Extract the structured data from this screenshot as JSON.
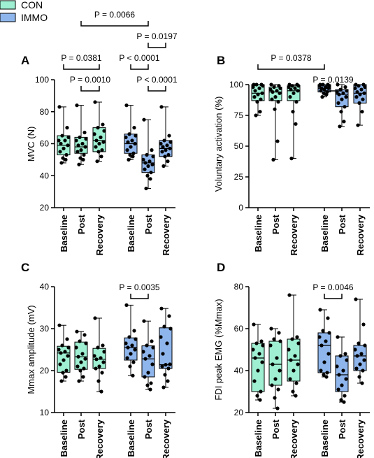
{
  "legend": [
    {
      "label": "CON",
      "color": "#9ff0d2"
    },
    {
      "label": "IMMO",
      "color": "#8fb6ec"
    }
  ],
  "chart_data": [
    {
      "type": "box",
      "panel": "A",
      "ylabel": "MVC (N)",
      "ylim": [
        20,
        100
      ],
      "yticks": [
        20,
        40,
        60,
        80,
        100
      ],
      "categories": [
        "Baseline",
        "Post",
        "Recovery",
        "Baseline",
        "Post",
        "Recovery"
      ],
      "groups": [
        "CON",
        "CON",
        "CON",
        "IMMO",
        "IMMO",
        "IMMO"
      ],
      "boxes": [
        {
          "min": 48,
          "q1": 53,
          "median": 59,
          "q3": 65,
          "max": 83,
          "points": [
            83,
            70,
            65,
            64,
            62,
            62,
            60,
            59,
            57,
            55,
            53,
            51,
            50,
            48
          ]
        },
        {
          "min": 47,
          "q1": 54,
          "median": 58,
          "q3": 64,
          "max": 84,
          "points": [
            84,
            67,
            64,
            63,
            62,
            60,
            59,
            58,
            56,
            55,
            53,
            51,
            50,
            47
          ]
        },
        {
          "min": 49,
          "q1": 55,
          "median": 62,
          "q3": 70,
          "max": 86,
          "points": [
            86,
            72,
            70,
            68,
            66,
            64,
            62,
            61,
            60,
            58,
            56,
            55,
            52,
            49
          ]
        },
        {
          "min": 50,
          "q1": 54,
          "median": 60,
          "q3": 66,
          "max": 84,
          "points": [
            84,
            70,
            66,
            65,
            64,
            62,
            61,
            60,
            58,
            56,
            54,
            53,
            52,
            50
          ]
        },
        {
          "min": 32,
          "q1": 42,
          "median": 48,
          "q3": 53,
          "max": 75,
          "points": [
            75,
            56,
            53,
            52,
            50,
            49,
            48,
            47,
            46,
            44,
            42,
            40,
            38,
            32
          ]
        },
        {
          "min": 46,
          "q1": 52,
          "median": 57,
          "q3": 62,
          "max": 83,
          "points": [
            83,
            65,
            62,
            61,
            60,
            59,
            58,
            57,
            56,
            55,
            53,
            52,
            49,
            46
          ]
        }
      ],
      "comparisons": [
        {
          "from": 0,
          "to": 2,
          "label": "P = 0.0381",
          "level": 1
        },
        {
          "from": 1,
          "to": 2,
          "label": "P = 0.0010",
          "level": 0
        },
        {
          "from": 3,
          "to": 4,
          "label": "P < 0.0001",
          "level": 1
        },
        {
          "from": 4,
          "to": 5,
          "label": "P < 0.0001",
          "level": 0
        },
        {
          "from": 4,
          "to": 5,
          "label": "P = 0.0197",
          "level": 2
        },
        {
          "from": 1,
          "to": 4,
          "label": "P = 0.0066",
          "level": 3
        }
      ]
    },
    {
      "type": "box",
      "panel": "B",
      "ylabel": "Voluntary activation (%)",
      "ylim": [
        0,
        100
      ],
      "yticks": [
        0,
        25,
        50,
        75,
        100
      ],
      "categories": [
        "Baseline",
        "Post",
        "Recovery",
        "Baseline",
        "Post",
        "Recovery"
      ],
      "groups": [
        "CON",
        "CON",
        "CON",
        "IMMO",
        "IMMO",
        "IMMO"
      ],
      "boxes": [
        {
          "min": 75,
          "q1": 87,
          "median": 93,
          "q3": 100,
          "max": 100,
          "points": [
            100,
            100,
            100,
            99,
            98,
            97,
            95,
            93,
            92,
            90,
            88,
            86,
            78,
            75
          ]
        },
        {
          "min": 39,
          "q1": 87,
          "median": 94,
          "q3": 98,
          "max": 100,
          "points": [
            100,
            99,
            98,
            97,
            96,
            95,
            94,
            93,
            90,
            88,
            86,
            80,
            54,
            39
          ]
        },
        {
          "min": 40,
          "q1": 87,
          "median": 95,
          "q3": 99,
          "max": 100,
          "points": [
            100,
            100,
            99,
            99,
            98,
            97,
            96,
            95,
            93,
            90,
            86,
            78,
            68,
            40
          ]
        },
        {
          "min": 90,
          "q1": 94,
          "median": 97,
          "q3": 100,
          "max": 100,
          "points": [
            100,
            100,
            100,
            99,
            99,
            98,
            97,
            97,
            96,
            95,
            94,
            93,
            92,
            90
          ]
        },
        {
          "min": 66,
          "q1": 82,
          "median": 92,
          "q3": 96,
          "max": 100,
          "points": [
            100,
            98,
            96,
            95,
            94,
            93,
            92,
            90,
            88,
            85,
            82,
            78,
            70,
            66
          ]
        },
        {
          "min": 67,
          "q1": 85,
          "median": 93,
          "q3": 100,
          "max": 100,
          "points": [
            100,
            100,
            99,
            98,
            97,
            96,
            94,
            93,
            92,
            90,
            88,
            85,
            78,
            67
          ]
        }
      ],
      "comparisons": [
        {
          "from": 4,
          "to": 3,
          "label": "P = 0.0139",
          "level": 0
        },
        {
          "from": 0,
          "to": 3,
          "label": "P = 0.0378",
          "level": 1
        }
      ]
    },
    {
      "type": "box",
      "panel": "C",
      "ylabel": "Mmax amplitude (mV)",
      "ylim": [
        10,
        40
      ],
      "yticks": [
        10,
        20,
        30,
        40
      ],
      "categories": [
        "Baseline",
        "Post",
        "Recovery",
        "Baseline",
        "Post",
        "Recovery"
      ],
      "groups": [
        "CON",
        "CON",
        "CON",
        "IMMO",
        "IMMO",
        "IMMO"
      ],
      "boxes": [
        {
          "min": 17.5,
          "q1": 19.6,
          "median": 24.2,
          "q3": 25.8,
          "max": 30.8,
          "points": [
            30.8,
            27.5,
            26.0,
            25.5,
            25.0,
            24.5,
            24.2,
            23.5,
            22.5,
            21.5,
            20.0,
            19.5,
            18.5,
            17.5
          ]
        },
        {
          "min": 17.5,
          "q1": 20.3,
          "median": 23.3,
          "q3": 26.8,
          "max": 29.3,
          "points": [
            29.3,
            28.5,
            27.0,
            26.5,
            25.5,
            24.0,
            23.3,
            22.8,
            22.0,
            21.0,
            20.5,
            20.0,
            18.5,
            17.5
          ]
        },
        {
          "min": 15.0,
          "q1": 20.5,
          "median": 22.7,
          "q3": 25.3,
          "max": 32.5,
          "points": [
            32.5,
            26.0,
            25.5,
            24.5,
            23.5,
            23.0,
            22.7,
            22.0,
            21.0,
            20.5,
            19.5,
            17.5,
            15.0
          ]
        },
        {
          "min": 18.8,
          "q1": 22.5,
          "median": 25.5,
          "q3": 27.8,
          "max": 35.6,
          "points": [
            35.6,
            29.5,
            28.0,
            27.5,
            26.5,
            26.0,
            25.5,
            25.0,
            24.0,
            23.0,
            22.0,
            21.0,
            18.8
          ]
        },
        {
          "min": 15.5,
          "q1": 18.5,
          "median": 22.8,
          "q3": 25.9,
          "max": 31.8,
          "points": [
            31.8,
            27.0,
            26.0,
            25.5,
            24.5,
            23.5,
            22.8,
            21.5,
            19.5,
            18.5,
            17.0,
            16.5,
            15.5
          ]
        },
        {
          "min": 16.0,
          "q1": 20.5,
          "median": 21.4,
          "q3": 30.2,
          "max": 34.8,
          "points": [
            34.8,
            33.0,
            30.5,
            30.0,
            28.0,
            26.5,
            24.0,
            21.5,
            21.4,
            21.0,
            20.5,
            19.0,
            17.5,
            16.0
          ]
        }
      ],
      "comparisons": [
        {
          "from": 3,
          "to": 4,
          "label": "P = 0.0035",
          "level": 0
        }
      ]
    },
    {
      "type": "box",
      "panel": "D",
      "ylabel": "FDI peak EMG (%Mmax)",
      "ylim": [
        20,
        80
      ],
      "yticks": [
        20,
        40,
        60,
        80
      ],
      "categories": [
        "Baseline",
        "Post",
        "Recovery",
        "Baseline",
        "Post",
        "Recovery"
      ],
      "groups": [
        "CON",
        "CON",
        "CON",
        "IMMO",
        "IMMO",
        "IMMO"
      ],
      "boxes": [
        {
          "min": 26,
          "q1": 30,
          "median": 46,
          "q3": 53,
          "max": 62,
          "points": [
            62,
            54,
            53,
            52,
            50,
            48,
            46,
            44,
            40,
            35,
            30,
            28,
            26
          ]
        },
        {
          "min": 22,
          "q1": 33,
          "median": 43,
          "q3": 54,
          "max": 60,
          "points": [
            60,
            58,
            55,
            54,
            52,
            46,
            43,
            40,
            36,
            33,
            31,
            27,
            22
          ]
        },
        {
          "min": 28,
          "q1": 35,
          "median": 45,
          "q3": 55,
          "max": 76,
          "points": [
            76,
            56,
            55,
            53,
            50,
            47,
            45,
            43,
            40,
            36,
            34,
            30,
            28
          ]
        },
        {
          "min": 37,
          "q1": 39,
          "median": 52,
          "q3": 58,
          "max": 69,
          "points": [
            69,
            65,
            59,
            58,
            56,
            54,
            52,
            48,
            44,
            40,
            39,
            38,
            37
          ]
        },
        {
          "min": 25,
          "q1": 30,
          "median": 38,
          "q3": 47,
          "max": 56,
          "points": [
            56,
            48,
            47,
            45,
            42,
            40,
            38,
            36,
            33,
            31,
            28,
            26,
            25
          ]
        },
        {
          "min": 34,
          "q1": 40,
          "median": 47,
          "q3": 52,
          "max": 74,
          "points": [
            74,
            62,
            53,
            52,
            50,
            48,
            47,
            45,
            43,
            41,
            40,
            37,
            34
          ]
        }
      ],
      "comparisons": [
        {
          "from": 3,
          "to": 4,
          "label": "P = 0.0046",
          "level": 0
        }
      ]
    }
  ]
}
